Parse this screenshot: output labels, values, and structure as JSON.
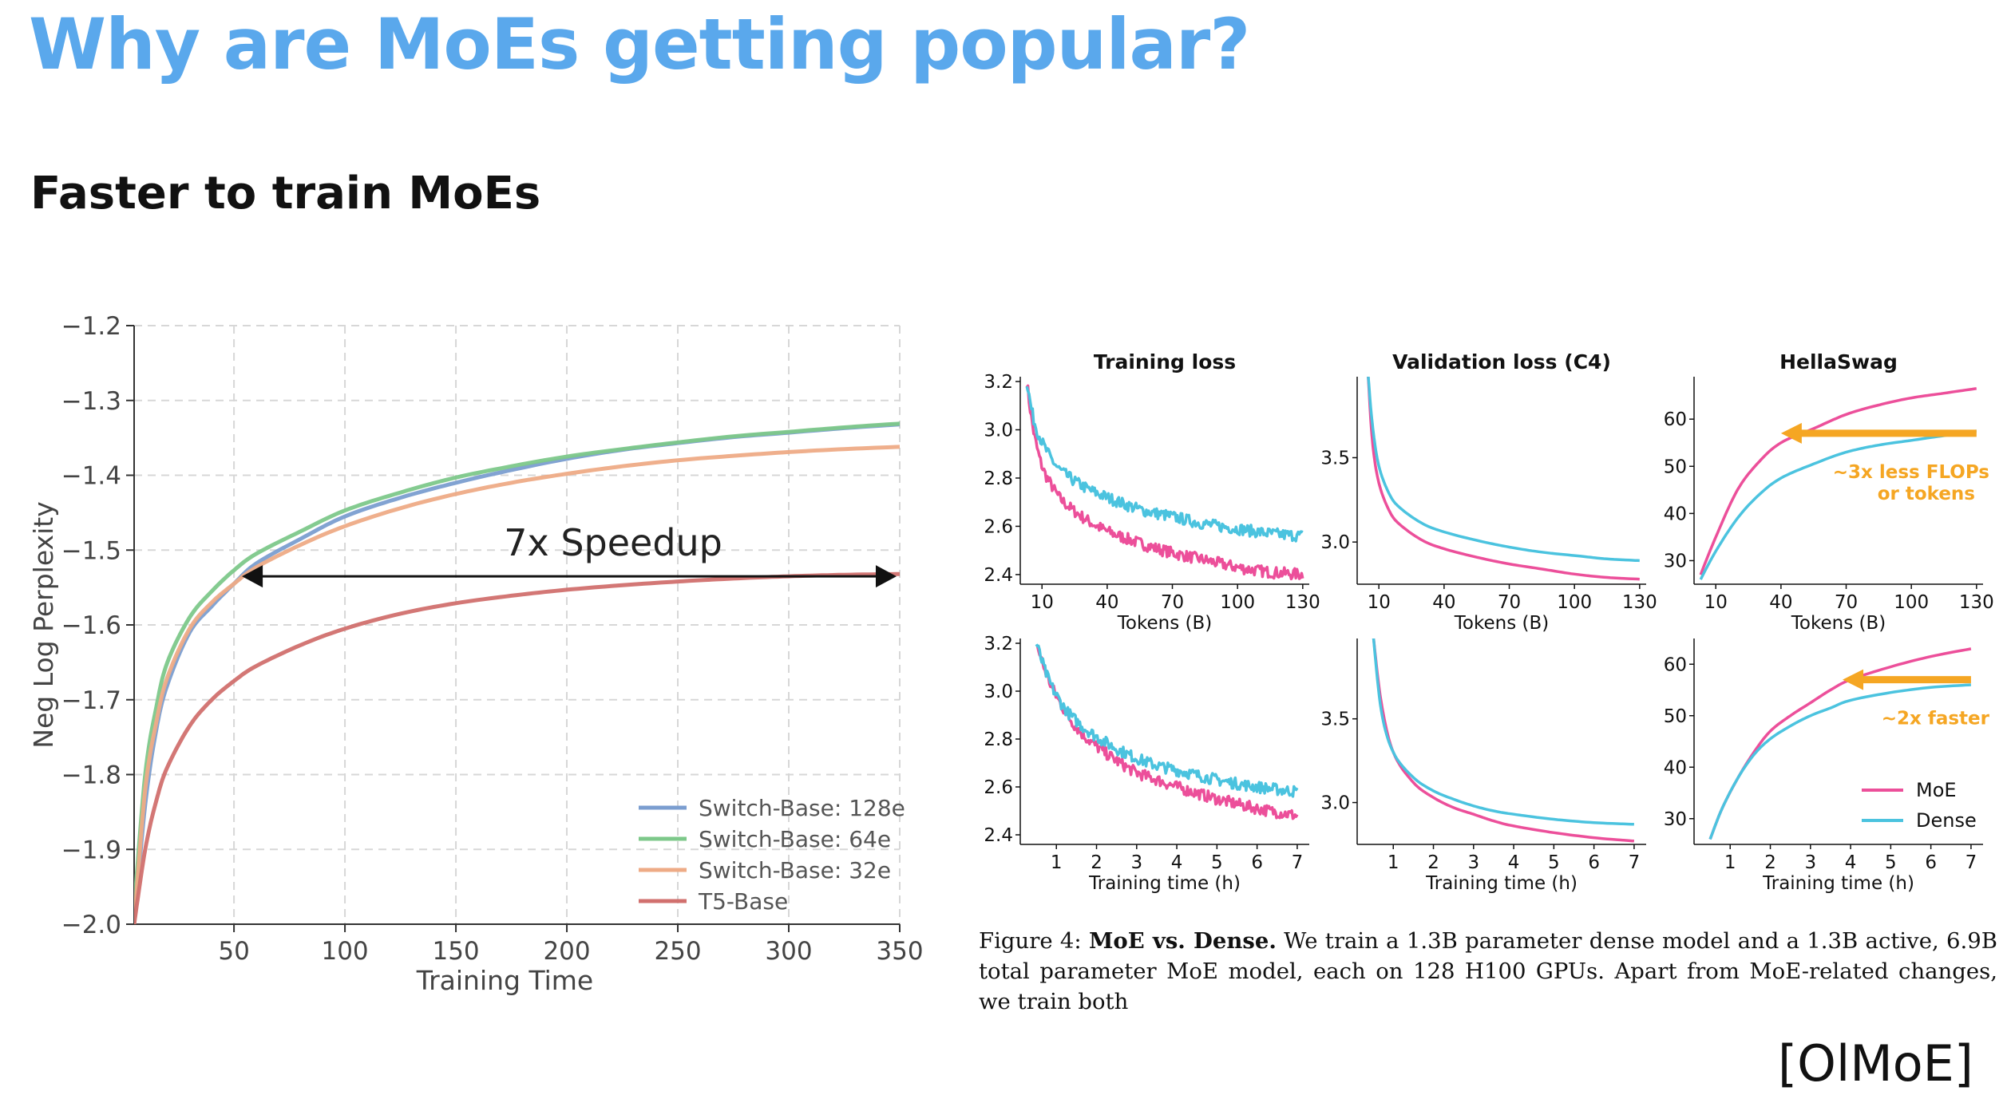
{
  "slide": {
    "title": "Why are MoEs getting popular?",
    "subtitle": "Faster to train MoEs",
    "citation": "[OlMoE]",
    "caption_lead": "Figure 4:",
    "caption_bold": "MoE vs. Dense.",
    "caption_text": " We train a 1.3B parameter dense model and a 1.3B active, 6.9B total parameter MoE model, each on 128 H100 GPUs. Apart from MoE-related changes, we train both"
  },
  "colors": {
    "title": "#5aa8ec",
    "moe": "#ec4f9a",
    "dense": "#4bc3df",
    "arrow": "#f5a623"
  },
  "chart_data": [
    {
      "id": "switch",
      "type": "line",
      "title": "",
      "xlabel": "Training Time",
      "ylabel": "Neg Log Perplexity",
      "xlim": [
        5,
        350
      ],
      "ylim": [
        -2.0,
        -1.2
      ],
      "xticks": [
        50,
        100,
        150,
        200,
        250,
        300,
        350
      ],
      "yticks": [
        -2.0,
        -1.9,
        -1.8,
        -1.7,
        -1.6,
        -1.5,
        -1.4,
        -1.3,
        -1.2
      ],
      "xtick_labels": [
        "50",
        "100",
        "150",
        "200",
        "250",
        "300",
        "350"
      ],
      "ytick_labels": [
        "−2.0",
        "−1.9",
        "−1.8",
        "−1.7",
        "−1.6",
        "−1.5",
        "−1.4",
        "−1.3",
        "−1.2"
      ],
      "grid": true,
      "legend": "bottom-right",
      "x": [
        5,
        10,
        15,
        20,
        30,
        40,
        50,
        60,
        80,
        100,
        125,
        150,
        175,
        200,
        225,
        250,
        275,
        300,
        325,
        350
      ],
      "series": [
        {
          "name": "Switch-Base: 128e",
          "color": "#7b9ed0",
          "values": [
            -2.0,
            -1.84,
            -1.74,
            -1.68,
            -1.61,
            -1.575,
            -1.545,
            -1.518,
            -1.485,
            -1.455,
            -1.43,
            -1.41,
            -1.393,
            -1.378,
            -1.366,
            -1.357,
            -1.349,
            -1.343,
            -1.337,
            -1.332
          ]
        },
        {
          "name": "Switch-Base: 64e",
          "color": "#7dc88a",
          "values": [
            -1.98,
            -1.8,
            -1.71,
            -1.65,
            -1.59,
            -1.555,
            -1.527,
            -1.505,
            -1.475,
            -1.447,
            -1.423,
            -1.403,
            -1.388,
            -1.375,
            -1.365,
            -1.356,
            -1.348,
            -1.342,
            -1.336,
            -1.331
          ]
        },
        {
          "name": "Switch-Base: 32e",
          "color": "#eeab86",
          "values": [
            -2.0,
            -1.82,
            -1.73,
            -1.67,
            -1.605,
            -1.57,
            -1.545,
            -1.523,
            -1.493,
            -1.468,
            -1.444,
            -1.425,
            -1.41,
            -1.398,
            -1.388,
            -1.38,
            -1.374,
            -1.369,
            -1.365,
            -1.362
          ]
        },
        {
          "name": "T5-Base",
          "color": "#d1706e",
          "values": [
            -2.0,
            -1.9,
            -1.835,
            -1.79,
            -1.735,
            -1.7,
            -1.675,
            -1.655,
            -1.627,
            -1.605,
            -1.585,
            -1.571,
            -1.561,
            -1.553,
            -1.547,
            -1.542,
            -1.538,
            -1.535,
            -1.533,
            -1.532
          ]
        }
      ],
      "annotation": {
        "text": "7x Speedup",
        "from_x": 50,
        "to_x": 350,
        "y": -1.535
      }
    },
    {
      "id": "olmoe",
      "type": "line",
      "panels": [
        {
          "title": "Training loss",
          "xlabel": "Tokens (B)",
          "ylim": [
            2.36,
            3.22
          ],
          "yticks": [
            2.4,
            2.6,
            2.8,
            3.0,
            3.2
          ],
          "ytick_labels": [
            "2.4",
            "2.6",
            "2.8",
            "3.0",
            "3.2"
          ],
          "xlim": [
            0,
            133
          ],
          "xticks": [
            10,
            40,
            70,
            100,
            130
          ],
          "xtick_labels": [
            "10",
            "40",
            "70",
            "100",
            "130"
          ],
          "noisy": true,
          "x": [
            3,
            6,
            10,
            15,
            20,
            30,
            40,
            55,
            70,
            85,
            100,
            115,
            130
          ],
          "series": [
            {
              "name": "MoE",
              "values": [
                3.2,
                3.0,
                2.85,
                2.76,
                2.7,
                2.63,
                2.58,
                2.53,
                2.49,
                2.46,
                2.43,
                2.41,
                2.4
              ]
            },
            {
              "name": "Dense",
              "values": [
                3.2,
                3.05,
                2.95,
                2.87,
                2.82,
                2.76,
                2.72,
                2.67,
                2.64,
                2.61,
                2.59,
                2.57,
                2.56
              ]
            }
          ]
        },
        {
          "title": "Validation loss (C4)",
          "xlabel": "Tokens (B)",
          "ylim": [
            2.75,
            3.98
          ],
          "yticks": [
            3.0,
            3.5
          ],
          "ytick_labels": [
            "3.0",
            "3.5"
          ],
          "xlim": [
            0,
            133
          ],
          "xticks": [
            10,
            40,
            70,
            100,
            130
          ],
          "xtick_labels": [
            "10",
            "40",
            "70",
            "100",
            "130"
          ],
          "x": [
            5,
            7,
            10,
            15,
            20,
            30,
            40,
            55,
            70,
            85,
            100,
            115,
            130
          ],
          "series": [
            {
              "name": "MoE",
              "values": [
                4.0,
                3.6,
                3.35,
                3.18,
                3.1,
                3.01,
                2.96,
                2.91,
                2.87,
                2.84,
                2.81,
                2.79,
                2.78
              ]
            },
            {
              "name": "Dense",
              "values": [
                4.0,
                3.7,
                3.45,
                3.28,
                3.2,
                3.11,
                3.06,
                3.01,
                2.97,
                2.94,
                2.92,
                2.9,
                2.89
              ]
            }
          ]
        },
        {
          "title": "HellaSwag",
          "xlabel": "Tokens (B)",
          "ylim": [
            25,
            69
          ],
          "yticks": [
            30,
            40,
            50,
            60
          ],
          "ytick_labels": [
            "30",
            "40",
            "50",
            "60"
          ],
          "xlim": [
            0,
            133
          ],
          "xticks": [
            10,
            40,
            70,
            100,
            130
          ],
          "xtick_labels": [
            "10",
            "40",
            "70",
            "100",
            "130"
          ],
          "x": [
            3,
            10,
            20,
            30,
            40,
            55,
            70,
            85,
            100,
            115,
            130
          ],
          "series": [
            {
              "name": "MoE",
              "values": [
                27,
                35,
                45,
                51,
                55,
                58,
                61,
                63,
                64.5,
                65.5,
                66.5
              ]
            },
            {
              "name": "Dense",
              "values": [
                26,
                32,
                39,
                44,
                47.5,
                50.5,
                53,
                54.5,
                55.5,
                56.5,
                57.5
              ]
            }
          ],
          "annotation": {
            "text_line1": "~3x less FLOPs",
            "text_line2": "or tokens",
            "from_x": 130,
            "to_x": 40,
            "y": 57
          }
        },
        {
          "title": "",
          "xlabel": "Training time (h)",
          "ylim": [
            2.36,
            3.22
          ],
          "yticks": [
            2.4,
            2.6,
            2.8,
            3.0,
            3.2
          ],
          "ytick_labels": [
            "2.4",
            "2.6",
            "2.8",
            "3.0",
            "3.2"
          ],
          "xlim": [
            0.1,
            7.3
          ],
          "xticks": [
            1,
            2,
            3,
            4,
            5,
            6,
            7
          ],
          "xtick_labels": [
            "1",
            "2",
            "3",
            "4",
            "5",
            "6",
            "7"
          ],
          "noisy": true,
          "x": [
            0.5,
            0.8,
            1.2,
            1.6,
            2,
            2.5,
            3,
            3.5,
            4,
            5,
            6,
            7
          ],
          "series": [
            {
              "name": "MoE",
              "values": [
                3.2,
                3.05,
                2.92,
                2.83,
                2.77,
                2.71,
                2.66,
                2.63,
                2.6,
                2.55,
                2.51,
                2.48
              ]
            },
            {
              "name": "Dense",
              "values": [
                3.2,
                3.05,
                2.93,
                2.86,
                2.81,
                2.76,
                2.72,
                2.69,
                2.67,
                2.63,
                2.6,
                2.58
              ]
            }
          ]
        },
        {
          "title": "",
          "xlabel": "Training time (h)",
          "ylim": [
            2.75,
            3.98
          ],
          "yticks": [
            3.0,
            3.5
          ],
          "ytick_labels": [
            "3.0",
            "3.5"
          ],
          "xlim": [
            0.1,
            7.3
          ],
          "xticks": [
            1,
            2,
            3,
            4,
            5,
            6,
            7
          ],
          "xtick_labels": [
            "1",
            "2",
            "3",
            "4",
            "5",
            "6",
            "7"
          ],
          "x": [
            0.5,
            0.7,
            1,
            1.5,
            2,
            2.5,
            3,
            3.5,
            4,
            5,
            6,
            7
          ],
          "series": [
            {
              "name": "MoE",
              "values": [
                4.0,
                3.6,
                3.3,
                3.12,
                3.03,
                2.97,
                2.93,
                2.89,
                2.86,
                2.82,
                2.79,
                2.77
              ]
            },
            {
              "name": "Dense",
              "values": [
                4.0,
                3.55,
                3.3,
                3.15,
                3.07,
                3.02,
                2.98,
                2.95,
                2.93,
                2.9,
                2.88,
                2.87
              ]
            }
          ]
        },
        {
          "title": "",
          "xlabel": "Training time (h)",
          "ylim": [
            25,
            65
          ],
          "yticks": [
            30,
            40,
            50,
            60
          ],
          "ytick_labels": [
            "30",
            "40",
            "50",
            "60"
          ],
          "xlim": [
            0.1,
            7.3
          ],
          "xticks": [
            1,
            2,
            3,
            4,
            5,
            6,
            7
          ],
          "xtick_labels": [
            "1",
            "2",
            "3",
            "4",
            "5",
            "6",
            "7"
          ],
          "x": [
            0.5,
            0.8,
            1.2,
            1.6,
            2,
            2.5,
            3,
            3.5,
            4,
            5,
            6,
            7
          ],
          "series": [
            {
              "name": "MoE",
              "values": [
                26,
                32,
                38,
                43,
                47,
                50,
                52.5,
                55,
                57,
                59.5,
                61.5,
                63
              ]
            },
            {
              "name": "Dense",
              "values": [
                26,
                32,
                38,
                42.5,
                45.5,
                48,
                50,
                51.5,
                53,
                54.5,
                55.5,
                56
              ]
            }
          ],
          "annotation": {
            "text_line1": "~2x faster",
            "from_x": 7,
            "to_x": 3.8,
            "y": 57
          }
        }
      ],
      "legend": {
        "position": "lower-right of bottom-right panel",
        "entries": [
          "MoE",
          "Dense"
        ]
      }
    }
  ]
}
